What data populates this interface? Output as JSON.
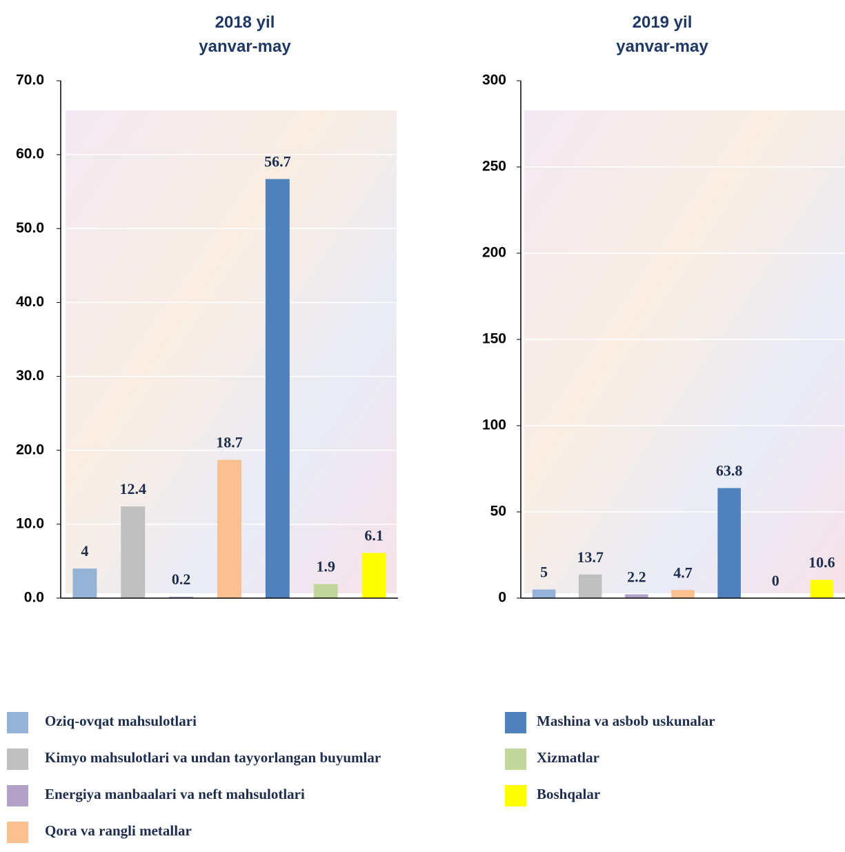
{
  "legend": [
    {
      "name": "Oziq-ovqat mahsulotlari",
      "color": "#95b3d7"
    },
    {
      "name": "Kimyo mahsulotlari va undan tayyorlangan buyumlar",
      "color": "#bfbfbf"
    },
    {
      "name": "Energiya manbaalari va neft mahsulotlari",
      "color": "#b3a2c7"
    },
    {
      "name": "Qora va rangli metallar",
      "color": "#fac090"
    },
    {
      "name": "Mashina va asbob uskunalar",
      "color": "#4f81bd"
    },
    {
      "name": "Xizmatlar",
      "color": "#c3d69b"
    },
    {
      "name": "Boshqalar",
      "color": "#ffff00"
    }
  ],
  "chart_data": [
    {
      "type": "bar",
      "title": [
        "2018 yil",
        "yanvar-may"
      ],
      "categories": [
        null,
        null,
        null,
        null,
        null,
        null,
        null
      ],
      "values": [
        4,
        12.4,
        0.2,
        18.7,
        56.7,
        1.9,
        6.1
      ],
      "ylim": [
        0,
        70
      ],
      "yticks": [
        {
          "value": 0,
          "label": "0.0"
        },
        {
          "value": 10,
          "label": "10.0"
        },
        {
          "value": 20,
          "label": "20.0"
        },
        {
          "value": 30,
          "label": "30.0"
        },
        {
          "value": 40,
          "label": "40.0"
        },
        {
          "value": 50,
          "label": "50.0"
        },
        {
          "value": 60,
          "label": "60.0"
        },
        {
          "value": 70,
          "label": "70.0"
        }
      ],
      "grid": true
    },
    {
      "type": "bar",
      "title": [
        "2019 yil",
        "yanvar-may"
      ],
      "categories": [
        null,
        null,
        null,
        null,
        null,
        null,
        null
      ],
      "values": [
        5,
        13.7,
        2.2,
        4.7,
        63.8,
        0,
        10.6
      ],
      "ylim": [
        0,
        300
      ],
      "yticks": [
        0,
        50,
        100,
        150,
        200,
        250,
        300
      ],
      "grid": true
    }
  ]
}
